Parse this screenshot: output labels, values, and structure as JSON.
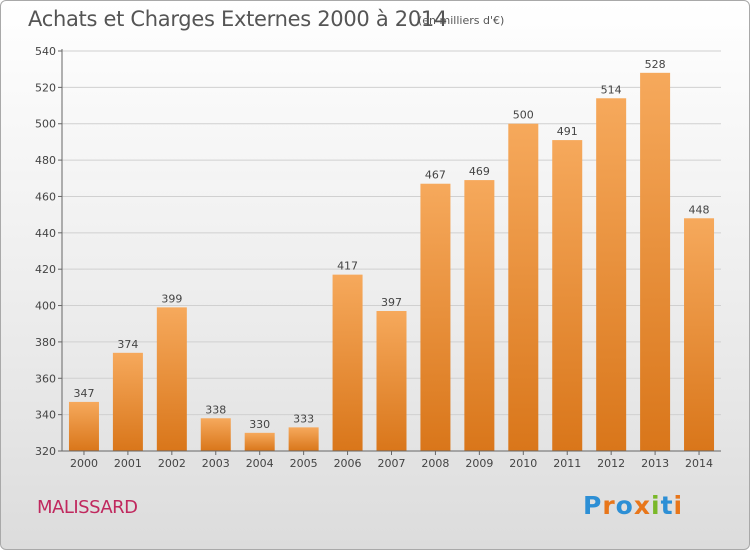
{
  "header": {
    "title": "Achats et Charges Externes 2000 à 2014",
    "subtitle": "(en milliers d'€)"
  },
  "footer": {
    "commune": "MALISSARD",
    "logo": "Proxiti"
  },
  "colors": {
    "bar_light": "#f6a95c",
    "bar_dark": "#d9761a",
    "commune": "#c0285e",
    "logo": [
      "#2d8fd5",
      "#e8761a",
      "#2d8fd5",
      "#e8761a",
      "#7ab829",
      "#2d8fd5",
      "#e8761a"
    ]
  },
  "chart_data": {
    "type": "bar",
    "categories": [
      "2000",
      "2001",
      "2002",
      "2003",
      "2004",
      "2005",
      "2006",
      "2007",
      "2008",
      "2009",
      "2010",
      "2011",
      "2012",
      "2013",
      "2014"
    ],
    "values": [
      347,
      374,
      399,
      338,
      330,
      333,
      417,
      397,
      467,
      469,
      500,
      491,
      514,
      528,
      448
    ],
    "title": "Achats et Charges Externes 2000 à 2014",
    "subtitle": "(en milliers d'€)",
    "xlabel": "",
    "ylabel": "",
    "ylim": [
      320,
      540
    ],
    "yticks": [
      320,
      340,
      360,
      380,
      400,
      420,
      440,
      460,
      480,
      500,
      520,
      540
    ],
    "grid": true,
    "data_labels": true
  }
}
